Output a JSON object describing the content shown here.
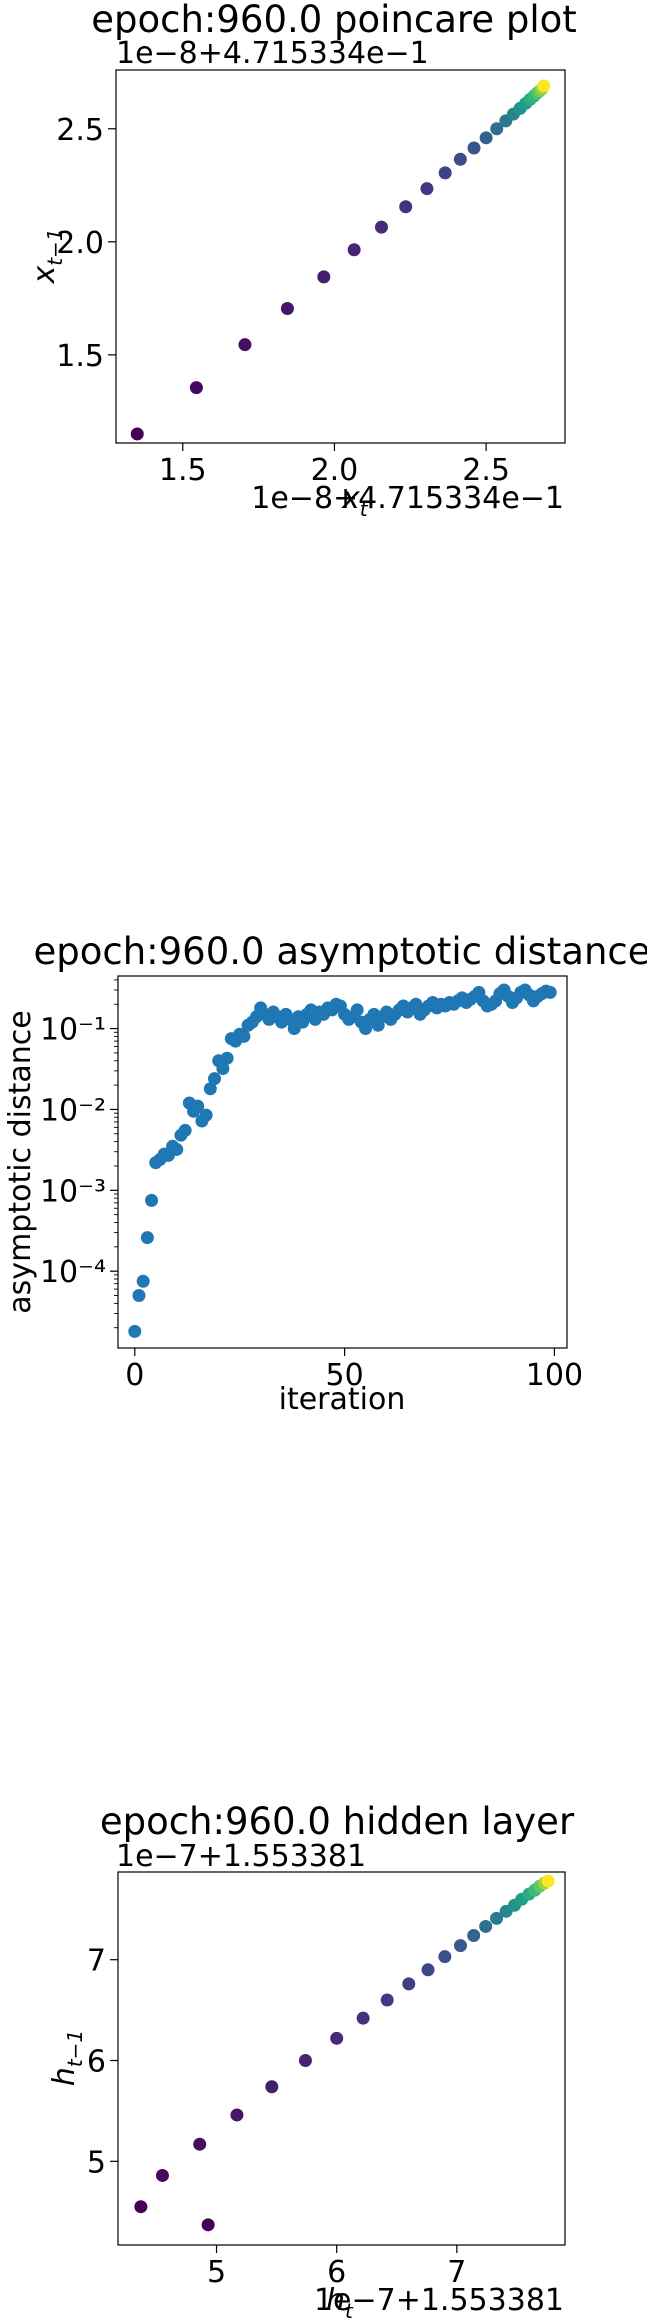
{
  "chart_data": [
    {
      "type": "scatter",
      "title": "epoch:960.0 poincare plot",
      "xlabel_main": "x",
      "xlabel_sub": "t",
      "ylabel_main": "x",
      "ylabel_sub": "t−1",
      "x_offset_text": "1e−8+4.715334e−1",
      "y_offset_text": "1e−8+4.715334e−1",
      "xlim": [
        1.28,
        2.76
      ],
      "ylim": [
        1.11,
        2.76
      ],
      "xticks": [
        {
          "v": 1.5,
          "label": "1.5"
        },
        {
          "v": 2.0,
          "label": "2.0"
        },
        {
          "v": 2.5,
          "label": "2.5"
        }
      ],
      "yticks": [
        {
          "v": 1.5,
          "label": "1.5"
        },
        {
          "v": 2.0,
          "label": "2.0"
        },
        {
          "v": 2.5,
          "label": "2.5"
        }
      ],
      "colormap": [
        "#440154",
        "#482878",
        "#3e4989",
        "#31688e",
        "#26828e",
        "#1f9e89",
        "#35b779",
        "#6ece58",
        "#b5de2b",
        "#fde725"
      ],
      "x": [
        1.35,
        1.545,
        1.705,
        1.845,
        1.965,
        2.065,
        2.155,
        2.235,
        2.305,
        2.365,
        2.415,
        2.46,
        2.5,
        2.535,
        2.565,
        2.59,
        2.612,
        2.63,
        2.645,
        2.658,
        2.668,
        2.677,
        2.684,
        2.69
      ],
      "y": [
        1.15,
        1.355,
        1.545,
        1.705,
        1.845,
        1.965,
        2.065,
        2.155,
        2.235,
        2.305,
        2.365,
        2.415,
        2.46,
        2.5,
        2.535,
        2.565,
        2.59,
        2.612,
        2.63,
        2.645,
        2.658,
        2.668,
        2.677,
        2.69
      ],
      "color_values": [
        0.0,
        0.02,
        0.04,
        0.06,
        0.08,
        0.1,
        0.12,
        0.14,
        0.17,
        0.2,
        0.23,
        0.27,
        0.31,
        0.36,
        0.41,
        0.46,
        0.51,
        0.56,
        0.61,
        0.66,
        0.71,
        0.77,
        0.84,
        1.0
      ]
    },
    {
      "type": "scatter",
      "title": "epoch:960.0 asymptotic distance",
      "xlabel": "iteration",
      "ylabel": "asymptotic distance",
      "yscale": "log",
      "xlim": [
        -4,
        103
      ],
      "ylim_log10": [
        -4.95,
        -0.35
      ],
      "xticks": [
        {
          "v": 0,
          "label": "0"
        },
        {
          "v": 50,
          "label": "50"
        },
        {
          "v": 100,
          "label": "100"
        }
      ],
      "yticks": [
        {
          "e": -4,
          "label": "10⁻⁴"
        },
        {
          "e": -3,
          "label": "10⁻³"
        },
        {
          "e": -2,
          "label": "10⁻²"
        },
        {
          "e": -1,
          "label": "10⁻¹"
        }
      ],
      "color": "#1f77b4",
      "x": [
        0,
        1,
        2,
        3,
        4,
        5,
        6,
        7,
        8,
        9,
        10,
        11,
        12,
        13,
        14,
        15,
        16,
        17,
        18,
        19,
        20,
        21,
        22,
        23,
        24,
        25,
        26,
        27,
        28,
        29,
        30,
        31,
        32,
        33,
        34,
        35,
        36,
        37,
        38,
        39,
        40,
        41,
        42,
        43,
        44,
        45,
        46,
        47,
        48,
        49,
        50,
        51,
        52,
        53,
        54,
        55,
        56,
        57,
        58,
        59,
        60,
        61,
        62,
        63,
        64,
        65,
        66,
        67,
        68,
        69,
        70,
        71,
        72,
        73,
        74,
        75,
        76,
        77,
        78,
        79,
        80,
        81,
        82,
        83,
        84,
        85,
        86,
        87,
        88,
        89,
        90,
        91,
        92,
        93,
        94,
        95,
        96,
        97,
        98,
        99
      ],
      "y": [
        1.8e-05,
        5e-05,
        7.5e-05,
        0.00026,
        0.00075,
        0.0022,
        0.0024,
        0.0028,
        0.0027,
        0.0035,
        0.0032,
        0.0048,
        0.0055,
        0.012,
        0.0095,
        0.011,
        0.0072,
        0.0085,
        0.018,
        0.024,
        0.04,
        0.032,
        0.043,
        0.075,
        0.07,
        0.085,
        0.08,
        0.11,
        0.12,
        0.14,
        0.18,
        0.15,
        0.13,
        0.16,
        0.14,
        0.12,
        0.15,
        0.13,
        0.1,
        0.14,
        0.12,
        0.15,
        0.17,
        0.13,
        0.16,
        0.15,
        0.18,
        0.17,
        0.2,
        0.19,
        0.15,
        0.13,
        0.14,
        0.17,
        0.12,
        0.1,
        0.13,
        0.15,
        0.11,
        0.14,
        0.16,
        0.13,
        0.15,
        0.17,
        0.19,
        0.16,
        0.18,
        0.2,
        0.15,
        0.17,
        0.19,
        0.21,
        0.18,
        0.2,
        0.19,
        0.21,
        0.2,
        0.22,
        0.24,
        0.21,
        0.23,
        0.25,
        0.28,
        0.22,
        0.19,
        0.2,
        0.22,
        0.27,
        0.3,
        0.25,
        0.21,
        0.24,
        0.28,
        0.3,
        0.26,
        0.22,
        0.25,
        0.27,
        0.29,
        0.28
      ]
    },
    {
      "type": "scatter",
      "title": "epoch:960.0 hidden layer",
      "xlabel_main": "h",
      "xlabel_sub": "t",
      "ylabel_main": "h",
      "ylabel_sub": "t−1",
      "x_offset_text": "1e−7+1.553381",
      "y_offset_text": "1e−7+1.553381",
      "xlim": [
        4.18,
        7.9
      ],
      "ylim": [
        4.17,
        7.87
      ],
      "xticks": [
        {
          "v": 5,
          "label": "5"
        },
        {
          "v": 6,
          "label": "6"
        },
        {
          "v": 7,
          "label": "7"
        }
      ],
      "yticks": [
        {
          "v": 5,
          "label": "5"
        },
        {
          "v": 6,
          "label": "6"
        },
        {
          "v": 7,
          "label": "7"
        }
      ],
      "colormap": [
        "#440154",
        "#482878",
        "#3e4989",
        "#31688e",
        "#26828e",
        "#1f9e89",
        "#35b779",
        "#6ece58",
        "#b5de2b",
        "#fde725"
      ],
      "x": [
        4.93,
        4.37,
        4.55,
        4.86,
        5.17,
        5.46,
        5.74,
        6.0,
        6.22,
        6.42,
        6.6,
        6.76,
        6.9,
        7.03,
        7.14,
        7.24,
        7.33,
        7.41,
        7.48,
        7.54,
        7.6,
        7.65,
        7.69,
        7.73,
        7.76
      ],
      "y": [
        4.37,
        4.55,
        4.86,
        5.17,
        5.46,
        5.74,
        6.0,
        6.22,
        6.42,
        6.6,
        6.76,
        6.9,
        7.03,
        7.14,
        7.24,
        7.33,
        7.41,
        7.48,
        7.54,
        7.6,
        7.65,
        7.69,
        7.73,
        7.76,
        7.78
      ],
      "color_values": [
        0.0,
        0.0,
        0.02,
        0.04,
        0.06,
        0.08,
        0.1,
        0.12,
        0.14,
        0.16,
        0.19,
        0.22,
        0.25,
        0.28,
        0.32,
        0.36,
        0.41,
        0.46,
        0.51,
        0.56,
        0.62,
        0.68,
        0.75,
        0.84,
        1.0
      ]
    }
  ]
}
